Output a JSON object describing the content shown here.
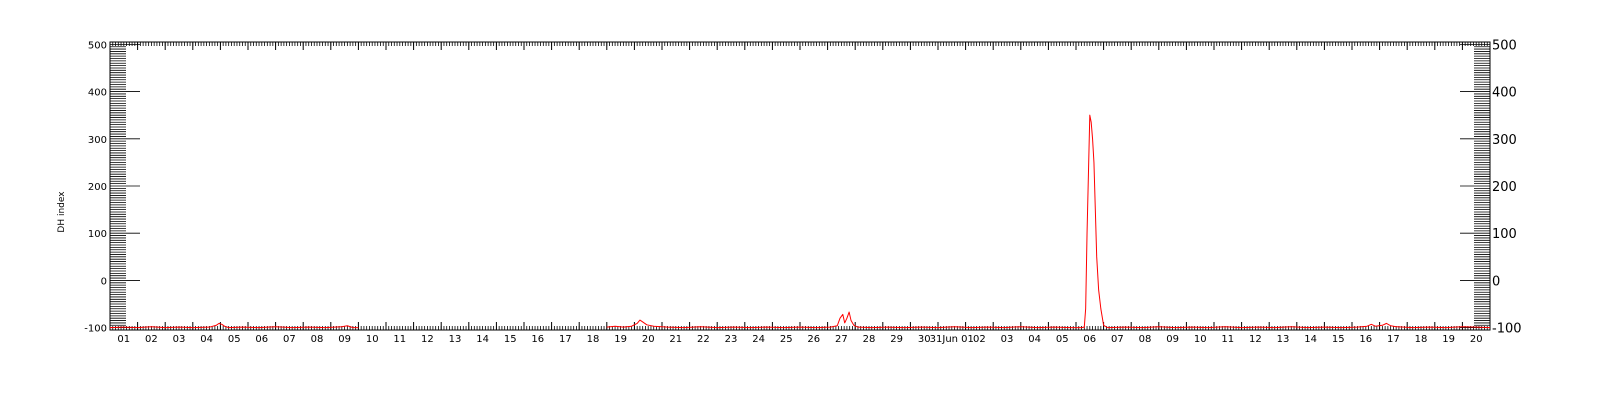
{
  "chart_data": {
    "type": "line",
    "ylabel": "DH index",
    "ylim": [
      -105,
      505
    ],
    "yticks": [
      -100,
      0,
      100,
      200,
      300,
      400,
      500
    ],
    "yticks_right": [
      "-100",
      "0",
      "100",
      "200",
      "300",
      "400",
      "500"
    ],
    "xticks": [
      "01",
      "02",
      "03",
      "04",
      "05",
      "06",
      "07",
      "08",
      "09",
      "10",
      "11",
      "12",
      "13",
      "14",
      "15",
      "16",
      "17",
      "18",
      "19",
      "20",
      "21",
      "22",
      "23",
      "24",
      "25",
      "26",
      "27",
      "28",
      "29",
      "30",
      "31Jun 01",
      "02",
      "03",
      "04",
      "05",
      "06",
      "07",
      "08",
      "09",
      "10",
      "11",
      "12",
      "13",
      "14",
      "15",
      "16",
      "17",
      "18",
      "19",
      "20"
    ],
    "grid": false,
    "line_color": "#ff0000",
    "series": [
      {
        "points": [
          [
            0.0,
            -100
          ],
          [
            0.5,
            -99
          ],
          [
            1.0,
            -100
          ],
          [
            1.5,
            -98
          ],
          [
            2.0,
            -100
          ],
          [
            2.5,
            -99
          ],
          [
            3.0,
            -100
          ],
          [
            3.6,
            -99
          ],
          [
            3.85,
            -95
          ],
          [
            3.95,
            -91
          ],
          [
            4.05,
            -93
          ],
          [
            4.15,
            -97
          ],
          [
            4.3,
            -100
          ],
          [
            4.8,
            -99
          ],
          [
            5.4,
            -100
          ],
          [
            6.0,
            -98
          ],
          [
            6.6,
            -100
          ],
          [
            7.2,
            -99
          ],
          [
            7.8,
            -100
          ],
          [
            8.4,
            -98
          ],
          [
            8.6,
            -96
          ],
          [
            8.8,
            -100
          ],
          [
            9.0,
            -100
          ],
          [
            18.0,
            -99
          ],
          [
            18.3,
            -97
          ],
          [
            18.6,
            -99
          ],
          [
            18.9,
            -97
          ],
          [
            19.1,
            -91
          ],
          [
            19.2,
            -84
          ],
          [
            19.3,
            -88
          ],
          [
            19.45,
            -94
          ],
          [
            19.7,
            -97
          ],
          [
            20.2,
            -99
          ],
          [
            20.8,
            -100
          ],
          [
            21.4,
            -98
          ],
          [
            22.0,
            -100
          ],
          [
            22.6,
            -99
          ],
          [
            23.2,
            -100
          ],
          [
            23.8,
            -99
          ],
          [
            24.4,
            -100
          ],
          [
            25.0,
            -99
          ],
          [
            25.6,
            -100
          ],
          [
            26.1,
            -99
          ],
          [
            26.35,
            -96
          ],
          [
            26.45,
            -80
          ],
          [
            26.55,
            -72
          ],
          [
            26.62,
            -90
          ],
          [
            26.7,
            -80
          ],
          [
            26.78,
            -67
          ],
          [
            26.85,
            -85
          ],
          [
            26.95,
            -95
          ],
          [
            27.1,
            -99
          ],
          [
            27.6,
            -100
          ],
          [
            28.2,
            -99
          ],
          [
            28.8,
            -100
          ],
          [
            29.4,
            -99
          ],
          [
            30.0,
            -100
          ],
          [
            30.6,
            -98
          ],
          [
            31.2,
            -100
          ],
          [
            31.8,
            -99
          ],
          [
            32.4,
            -100
          ],
          [
            33.0,
            -98
          ],
          [
            33.6,
            -100
          ],
          [
            34.2,
            -99
          ],
          [
            34.8,
            -100
          ],
          [
            35.2,
            -100
          ],
          [
            35.3,
            -99
          ],
          [
            35.35,
            -60
          ],
          [
            35.4,
            100
          ],
          [
            35.46,
            250
          ],
          [
            35.5,
            350
          ],
          [
            35.55,
            335
          ],
          [
            35.6,
            300
          ],
          [
            35.65,
            250
          ],
          [
            35.7,
            150
          ],
          [
            35.75,
            50
          ],
          [
            35.82,
            -20
          ],
          [
            35.9,
            -60
          ],
          [
            36.0,
            -95
          ],
          [
            36.15,
            -100
          ],
          [
            36.8,
            -99
          ],
          [
            37.4,
            -100
          ],
          [
            38.0,
            -98
          ],
          [
            38.6,
            -100
          ],
          [
            39.2,
            -99
          ],
          [
            39.8,
            -100
          ],
          [
            40.4,
            -98
          ],
          [
            41.0,
            -100
          ],
          [
            41.6,
            -99
          ],
          [
            42.2,
            -100
          ],
          [
            42.8,
            -98
          ],
          [
            43.4,
            -100
          ],
          [
            44.0,
            -99
          ],
          [
            44.6,
            -100
          ],
          [
            45.2,
            -99
          ],
          [
            45.55,
            -97
          ],
          [
            45.7,
            -93
          ],
          [
            45.85,
            -97
          ],
          [
            46.1,
            -95
          ],
          [
            46.25,
            -91
          ],
          [
            46.4,
            -96
          ],
          [
            46.6,
            -98
          ],
          [
            47.2,
            -100
          ],
          [
            47.8,
            -99
          ],
          [
            48.4,
            -100
          ],
          [
            49.0,
            -98
          ],
          [
            49.5,
            -99
          ],
          [
            50.0,
            -100
          ]
        ]
      }
    ]
  }
}
